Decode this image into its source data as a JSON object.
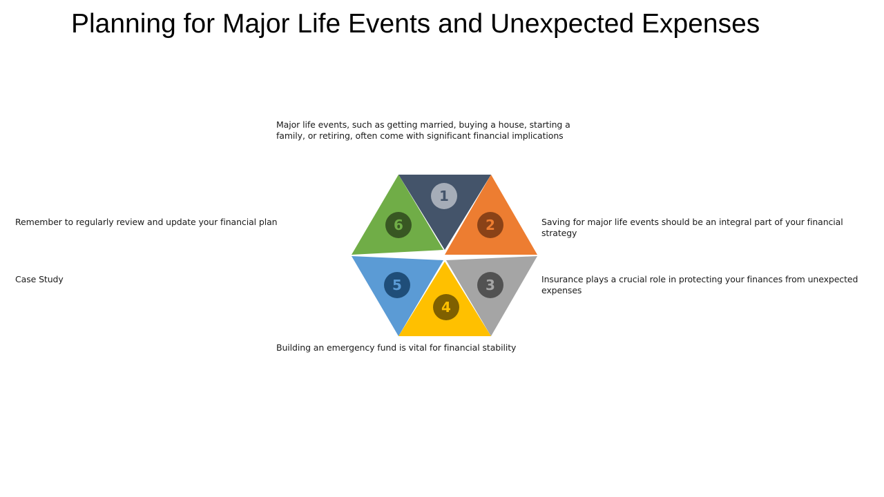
{
  "slide": {
    "title": "Planning for Major Life Events and Unexpected Expenses"
  },
  "diagram": {
    "segments": [
      {
        "number": "1",
        "color": "#44546a",
        "badge_color": "#a6adb8",
        "text_color": "#44546a",
        "caption": "Major life events, such as getting married, buying a house, starting a family, or retiring, often come with significant financial implications"
      },
      {
        "number": "2",
        "color": "#ed7d31",
        "badge_color": "#8a4217",
        "text_color": "#ed7d31",
        "caption": "Saving for major life events should be an integral part of your financial strategy"
      },
      {
        "number": "3",
        "color": "#a5a5a5",
        "badge_color": "#525252",
        "text_color": "#a5a5a5",
        "caption": "Insurance plays a crucial role in protecting your finances from unexpected expenses"
      },
      {
        "number": "4",
        "color": "#ffc000",
        "badge_color": "#7f6000",
        "text_color": "#ffc000",
        "caption": "Building an emergency fund is vital for financial stability"
      },
      {
        "number": "5",
        "color": "#5b9bd5",
        "badge_color": "#1f4e79",
        "text_color": "#5b9bd5",
        "caption": "Case Study"
      },
      {
        "number": "6",
        "color": "#70ad47",
        "badge_color": "#385723",
        "text_color": "#70ad47",
        "caption": "Remember to regularly review and update your financial plan"
      }
    ]
  }
}
